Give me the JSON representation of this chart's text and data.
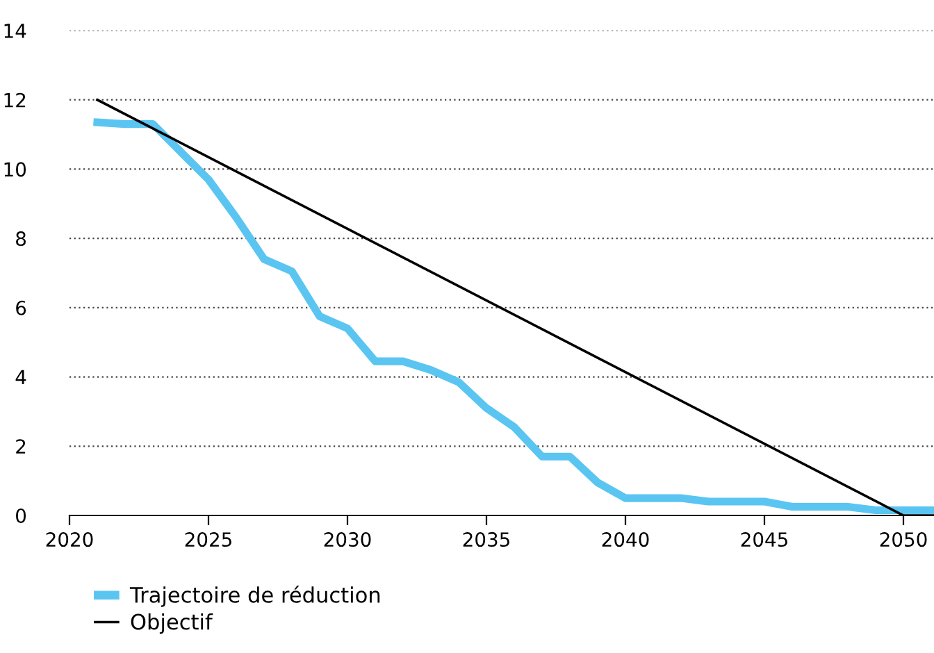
{
  "chart_data": {
    "type": "line",
    "x": [
      2021,
      2022,
      2023,
      2024,
      2025,
      2026,
      2027,
      2028,
      2029,
      2030,
      2031,
      2032,
      2033,
      2034,
      2035,
      2036,
      2037,
      2038,
      2039,
      2040,
      2041,
      2042,
      2043,
      2044,
      2045,
      2046,
      2047,
      2048,
      2049,
      2050,
      2051
    ],
    "series": [
      {
        "name": "Trajectoire de réduction",
        "color": "#5bc5f2",
        "values": [
          11.35,
          11.3,
          11.3,
          10.5,
          9.7,
          8.6,
          7.4,
          7.05,
          5.75,
          5.4,
          4.45,
          4.45,
          4.2,
          3.85,
          3.1,
          2.55,
          1.7,
          1.7,
          0.95,
          0.5,
          0.5,
          0.5,
          0.4,
          0.4,
          0.4,
          0.25,
          0.25,
          0.25,
          0.15,
          0.15,
          0.15
        ]
      },
      {
        "name": "Objectif",
        "color": "#000000",
        "x": [
          2021,
          2050,
          2051.1
        ],
        "values": [
          12,
          0,
          0
        ]
      }
    ],
    "xlim": [
      2020,
      2051.1
    ],
    "ylim": [
      0,
      14
    ],
    "xticks": [
      2020,
      2025,
      2030,
      2035,
      2040,
      2045,
      2050
    ],
    "yticks": [
      0,
      2,
      4,
      6,
      8,
      10,
      12,
      14
    ],
    "grid": "y",
    "legend": "bottom left",
    "marker": "none",
    "line_style": "solid"
  }
}
